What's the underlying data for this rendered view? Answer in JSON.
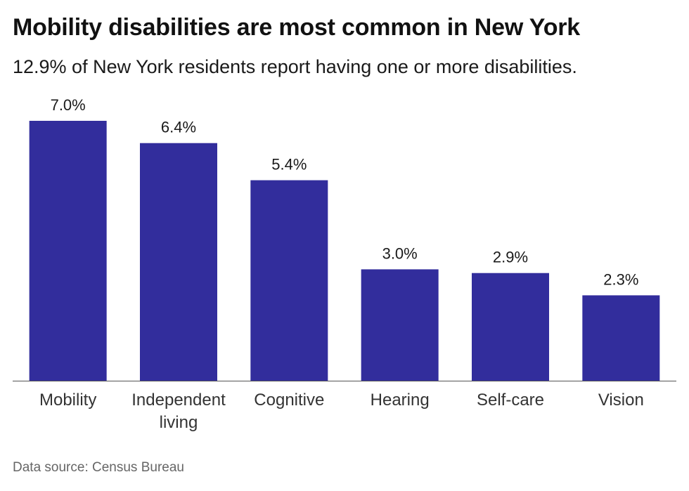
{
  "title": "Mobility disabilities are most common in New York",
  "subtitle": "12.9% of New York residents report having one or more disabilities.",
  "source": "Data source: Census Bureau",
  "colors": {
    "bar": "#322d9c",
    "baseline": "#555555",
    "label": "#1a1a1a"
  },
  "chart_data": {
    "type": "bar",
    "categories": [
      "Mobility",
      "Independent living",
      "Cognitive",
      "Hearing",
      "Self-care",
      "Vision"
    ],
    "category_lines": [
      [
        "Mobility"
      ],
      [
        "Independent",
        "living"
      ],
      [
        "Cognitive"
      ],
      [
        "Hearing"
      ],
      [
        "Self-care"
      ],
      [
        "Vision"
      ]
    ],
    "values": [
      7.0,
      6.4,
      5.4,
      3.0,
      2.9,
      2.3
    ],
    "data_labels": [
      "7.0%",
      "6.4%",
      "5.4%",
      "3.0%",
      "2.9%",
      "2.3%"
    ],
    "title": "Mobility disabilities are most common in New York",
    "subtitle": "12.9% of New York residents report having one or more disabilities.",
    "xlabel": "",
    "ylabel": "",
    "ylim": [
      0,
      7.0
    ],
    "unit": "%",
    "grid": false,
    "legend": "none"
  }
}
